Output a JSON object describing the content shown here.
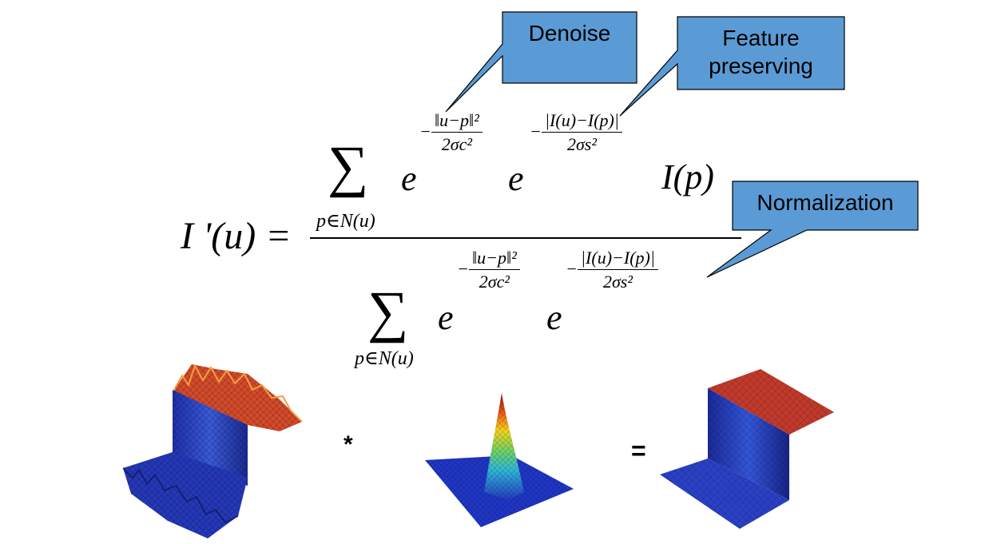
{
  "colors": {
    "callout_fill": "#5b9bd5",
    "callout_stroke": "#000000",
    "surface_high": "#c0392b",
    "surface_low": "#1f3fb8"
  },
  "callouts": {
    "denoise": "Denoise",
    "feature_line1": "Feature",
    "feature_line2": "preserving",
    "normalization": "Normalization"
  },
  "formula": {
    "lhs": "I '(u) =",
    "sum_symbol": "∑",
    "sum_index": "p∈N(u)",
    "exp_base": "e",
    "spatial_num": "‖u−p‖²",
    "spatial_den": "2σc²",
    "range_num": "|I(u)−I(p)|",
    "range_den": "2σs²",
    "intensity": "I(p)",
    "minus": "−"
  },
  "operators": {
    "convolve": "*",
    "equals": "="
  },
  "icons": [
    "noisy-step-surface-icon",
    "gaussian-kernel-surface-icon",
    "smoothed-step-surface-icon"
  ]
}
